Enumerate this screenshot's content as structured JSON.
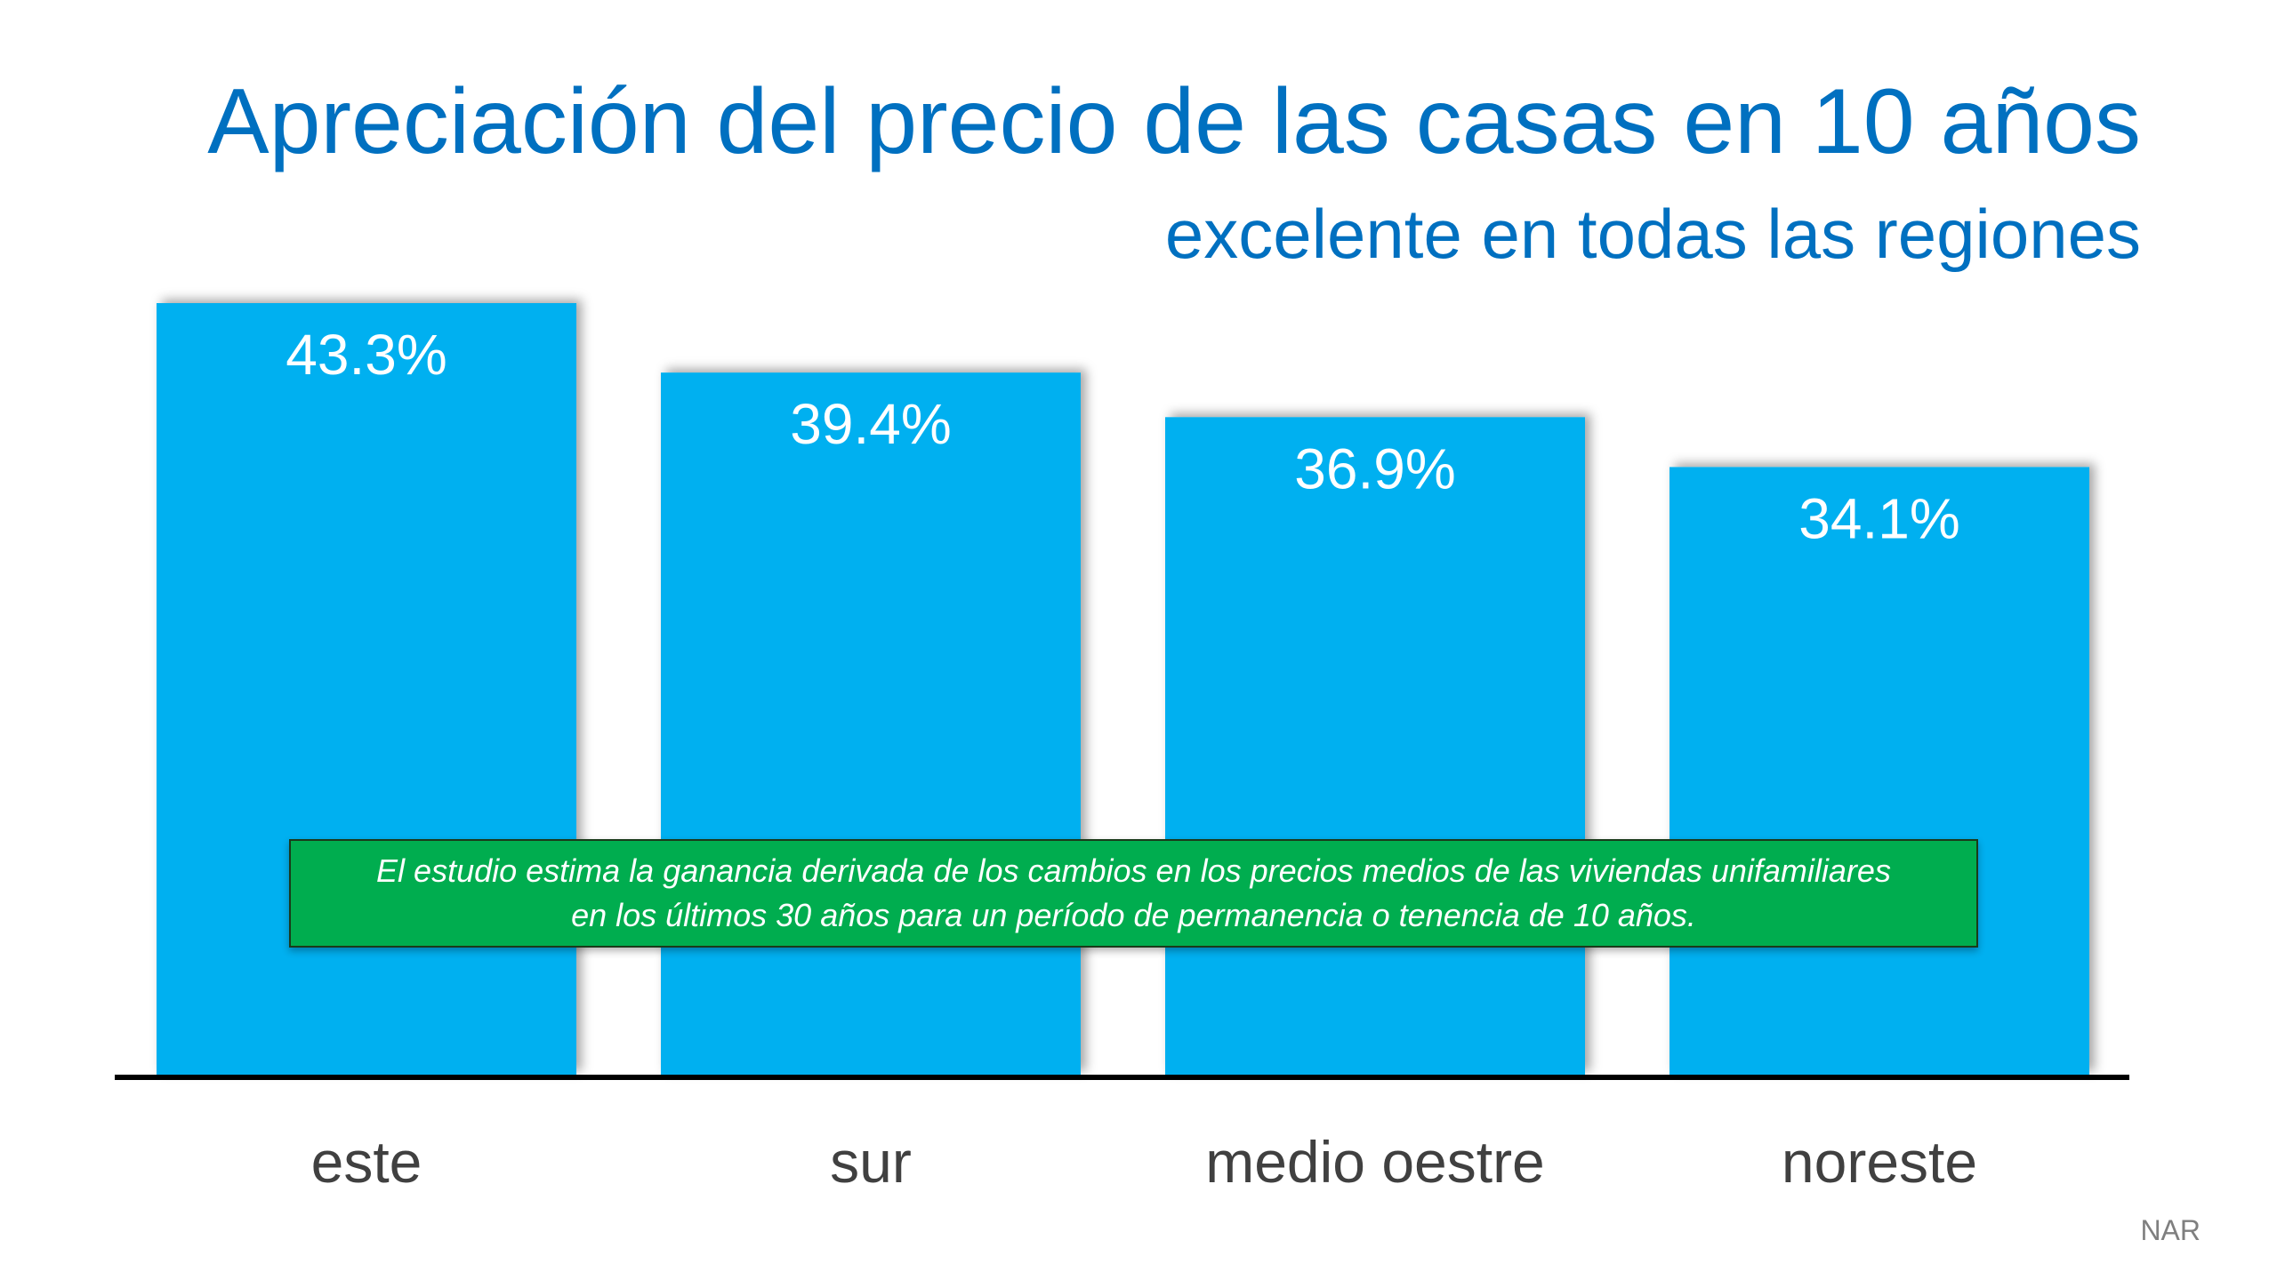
{
  "chart_data": {
    "type": "bar",
    "title": "Apreciación del precio de las casas en 10 años",
    "subtitle": "excelente en todas las regiones",
    "categories": [
      "este",
      "sur",
      "medio oestre",
      "noreste"
    ],
    "values": [
      43.3,
      39.4,
      36.9,
      34.1
    ],
    "data_labels": [
      "43.3%",
      "39.4%",
      "36.9%",
      "34.1%"
    ],
    "ylim": [
      0,
      43.3
    ],
    "grid": false,
    "bar_color": "#00B0F0",
    "annotation": [
      "El estudio estima la ganancia derivada de los cambios en los precios medios de las viviendas unifamiliares",
      "en los últimos 30 años para un período de permanencia o tenencia de 10 años."
    ],
    "annotation_color": "#00AD4F",
    "source": "NAR"
  },
  "colors": {
    "title": "#0070C0",
    "axis": "#000000",
    "category_text": "#404040"
  }
}
